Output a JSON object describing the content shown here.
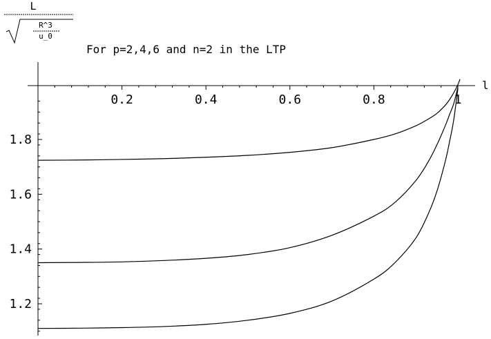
{
  "chart_data": {
    "type": "line",
    "title": "For p=2,4,6 and n=2 in the LTP",
    "ylabel": {
      "numerator": "L",
      "denominator": {
        "numerator": "R^3",
        "denominator": "u_0"
      }
    },
    "xlabel": "l",
    "xlim": [
      0,
      1.0
    ],
    "ylim": [
      1.09,
      1.95
    ],
    "x_ticks": [
      "0.2",
      "0.4",
      "0.6",
      "0.8",
      "1"
    ],
    "y_ticks": [
      "1.2",
      "1.4",
      "1.6",
      "1.8"
    ],
    "x_tick_values": [
      0.2,
      0.4,
      0.6,
      0.8,
      1.0
    ],
    "y_tick_values": [
      1.2,
      1.4,
      1.6,
      1.8
    ],
    "series": [
      {
        "x": [
          0.0,
          0.1,
          0.2,
          0.3,
          0.4,
          0.5,
          0.6,
          0.7,
          0.8,
          0.85,
          0.9,
          0.93,
          0.95,
          0.97,
          0.98,
          0.99,
          1.0,
          1.005
        ],
        "values": [
          1.724,
          1.725,
          1.727,
          1.73,
          1.735,
          1.742,
          1.753,
          1.77,
          1.8,
          1.82,
          1.85,
          1.875,
          1.895,
          1.925,
          1.945,
          1.97,
          2.0,
          2.02
        ]
      },
      {
        "x": [
          0.0,
          0.1,
          0.2,
          0.3,
          0.4,
          0.5,
          0.6,
          0.7,
          0.8,
          0.85,
          0.9,
          0.93,
          0.95,
          0.97,
          0.98,
          0.99,
          1.0
        ],
        "values": [
          1.35,
          1.351,
          1.353,
          1.358,
          1.366,
          1.38,
          1.405,
          1.45,
          1.52,
          1.57,
          1.65,
          1.72,
          1.78,
          1.85,
          1.89,
          1.93,
          1.99
        ]
      },
      {
        "x": [
          0.0,
          0.1,
          0.2,
          0.3,
          0.4,
          0.5,
          0.6,
          0.7,
          0.8,
          0.85,
          0.9,
          0.93,
          0.95,
          0.97,
          0.98,
          0.99,
          1.0
        ],
        "values": [
          1.11,
          1.111,
          1.113,
          1.117,
          1.125,
          1.14,
          1.165,
          1.21,
          1.29,
          1.35,
          1.44,
          1.53,
          1.61,
          1.72,
          1.79,
          1.87,
          1.985
        ]
      }
    ],
    "grid": false
  }
}
